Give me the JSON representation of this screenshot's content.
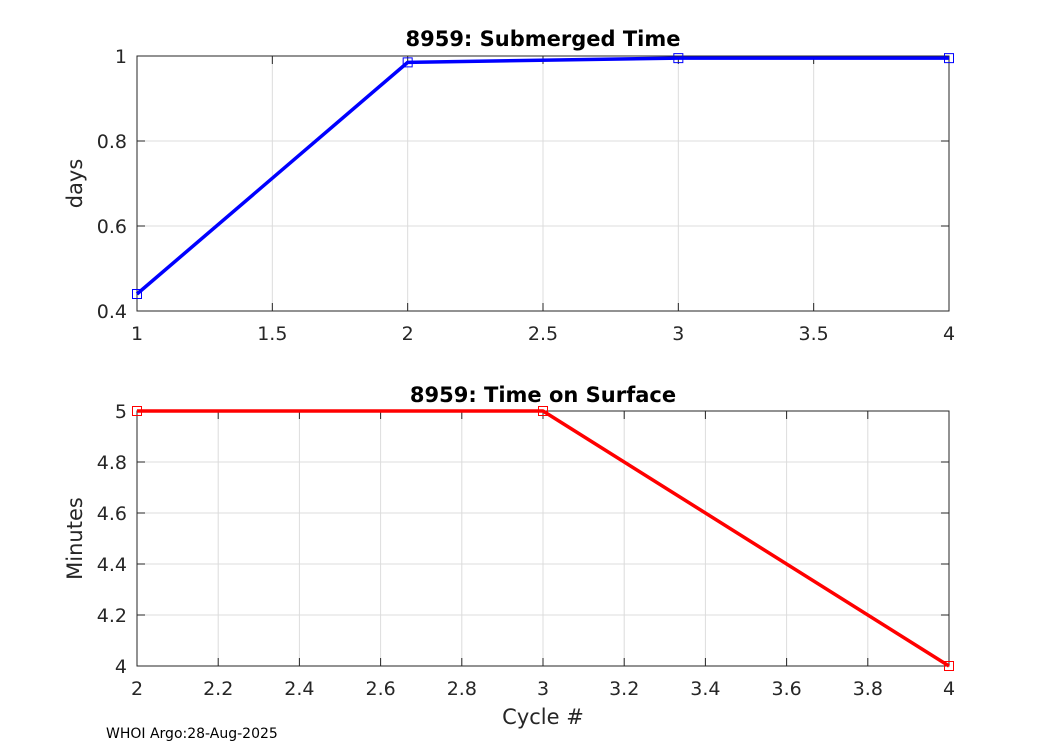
{
  "footer": "WHOI Argo:28-Aug-2025",
  "chart_data": [
    {
      "type": "line",
      "title": "8959: Submerged Time",
      "xlabel": "",
      "ylabel": "days",
      "x": [
        1,
        2,
        3,
        4
      ],
      "series": [
        {
          "name": "Submerged Time",
          "values": [
            0.44,
            0.985,
            0.995,
            0.995
          ],
          "color": "#0000ff",
          "marker": "square"
        }
      ],
      "xlim": [
        1,
        4
      ],
      "ylim": [
        0.4,
        1
      ],
      "xticks": [
        1,
        1.5,
        2,
        2.5,
        3,
        3.5,
        4
      ],
      "xtick_labels": [
        "1",
        "1.5",
        "2",
        "2.5",
        "3",
        "3.5",
        "4"
      ],
      "yticks": [
        0.4,
        0.6,
        0.8,
        1
      ],
      "ytick_labels": [
        "0.4",
        "0.6",
        "0.8",
        "1"
      ],
      "grid": true
    },
    {
      "type": "line",
      "title": "8959: Time on Surface",
      "xlabel": "Cycle #",
      "ylabel": "Minutes",
      "x": [
        2,
        3,
        4
      ],
      "series": [
        {
          "name": "Time on Surface",
          "values": [
            5,
            5,
            4
          ],
          "color": "#ff0000",
          "marker": "square"
        }
      ],
      "xlim": [
        2,
        4
      ],
      "ylim": [
        4,
        5
      ],
      "xticks": [
        2,
        2.2,
        2.4,
        2.6,
        2.8,
        3,
        3.2,
        3.4,
        3.6,
        3.8,
        4
      ],
      "xtick_labels": [
        "2",
        "2.2",
        "2.4",
        "2.6",
        "2.8",
        "3",
        "3.2",
        "3.4",
        "3.6",
        "3.8",
        "4"
      ],
      "yticks": [
        4,
        4.2,
        4.4,
        4.6,
        4.8,
        5
      ],
      "ytick_labels": [
        "4",
        "4.2",
        "4.4",
        "4.6",
        "4.8",
        "5"
      ],
      "grid": true
    }
  ]
}
